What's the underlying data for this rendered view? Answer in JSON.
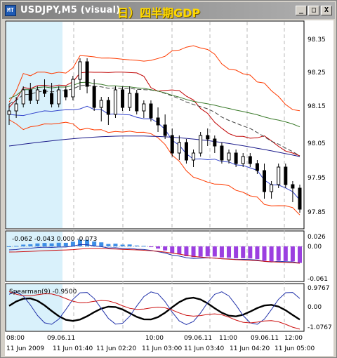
{
  "window": {
    "title": "USDJPY,M5 (visual)",
    "note": "日）四半期GDP",
    "buttons": [
      {
        "name": "minimize-button",
        "glyph": "_"
      },
      {
        "name": "maximize-button",
        "glyph": "□"
      },
      {
        "name": "close-button",
        "glyph": "X"
      }
    ]
  },
  "price_axis": [
    "98.35",
    "98.25",
    "98.15",
    "98.05",
    "97.95",
    "97.85"
  ],
  "macd": {
    "readout": "-0.062 -0.043 0.000 -0.073",
    "axis": [
      "0.026",
      "0.00",
      "-0.061"
    ]
  },
  "spearman": {
    "label": "Spearman(9) -0.9500",
    "axis": [
      "0.9767",
      "0.00",
      "-1.0767"
    ]
  },
  "time_top": [
    "08:00",
    "09.06.11",
    "10:00",
    "09.06.11",
    "11:00",
    "09.06.11",
    "12:00"
  ],
  "time_bottom": [
    "11 Jun 2009",
    "11 Jun 01:40",
    "11 Jun 02:20",
    "11 Jun 03:00",
    "11 Jun 03:40",
    "11 Jun 04:20",
    "11 Jun 05:00"
  ],
  "colors": {
    "bull_candle": "#ffffff",
    "bear_candle": "#000000",
    "upper_band": "#ff3b00",
    "ma_dark": "#404040",
    "ma_green": "#3a7a2a",
    "ma_navy": "#1a1a8a",
    "ma_red": "#c00000",
    "histogram_pos": "#3d8ee6",
    "histogram_neg": "#9b3fe0",
    "shade": "#d9f1fb"
  },
  "chart_data": {
    "type": "candlestick",
    "ylim": [
      97.82,
      98.4
    ],
    "candles": [
      {
        "o": 98.14,
        "h": 98.17,
        "l": 98.11,
        "c": 98.15
      },
      {
        "o": 98.15,
        "h": 98.19,
        "l": 98.13,
        "c": 98.17
      },
      {
        "o": 98.17,
        "h": 98.22,
        "l": 98.16,
        "c": 98.21
      },
      {
        "o": 98.21,
        "h": 98.23,
        "l": 98.17,
        "c": 98.18
      },
      {
        "o": 98.18,
        "h": 98.22,
        "l": 98.17,
        "c": 98.21
      },
      {
        "o": 98.21,
        "h": 98.24,
        "l": 98.19,
        "c": 98.2
      },
      {
        "o": 98.2,
        "h": 98.23,
        "l": 98.16,
        "c": 98.17
      },
      {
        "o": 98.17,
        "h": 98.22,
        "l": 98.16,
        "c": 98.21
      },
      {
        "o": 98.21,
        "h": 98.22,
        "l": 98.18,
        "c": 98.19
      },
      {
        "o": 98.19,
        "h": 98.25,
        "l": 98.18,
        "c": 98.24
      },
      {
        "o": 98.24,
        "h": 98.3,
        "l": 98.21,
        "c": 98.29
      },
      {
        "o": 98.29,
        "h": 98.3,
        "l": 98.2,
        "c": 98.22
      },
      {
        "o": 98.22,
        "h": 98.24,
        "l": 98.15,
        "c": 98.16
      },
      {
        "o": 98.16,
        "h": 98.19,
        "l": 98.12,
        "c": 98.18
      },
      {
        "o": 98.18,
        "h": 98.19,
        "l": 98.11,
        "c": 98.14
      },
      {
        "o": 98.14,
        "h": 98.22,
        "l": 98.13,
        "c": 98.21
      },
      {
        "o": 98.21,
        "h": 98.22,
        "l": 98.15,
        "c": 98.16
      },
      {
        "o": 98.16,
        "h": 98.22,
        "l": 98.15,
        "c": 98.2
      },
      {
        "o": 98.2,
        "h": 98.21,
        "l": 98.14,
        "c": 98.15
      },
      {
        "o": 98.15,
        "h": 98.18,
        "l": 98.13,
        "c": 98.17
      },
      {
        "o": 98.17,
        "h": 98.18,
        "l": 98.12,
        "c": 98.13
      },
      {
        "o": 98.13,
        "h": 98.16,
        "l": 98.09,
        "c": 98.11
      },
      {
        "o": 98.11,
        "h": 98.14,
        "l": 98.07,
        "c": 98.08
      },
      {
        "o": 98.08,
        "h": 98.1,
        "l": 98.02,
        "c": 98.03
      },
      {
        "o": 98.03,
        "h": 98.08,
        "l": 98.01,
        "c": 98.06
      },
      {
        "o": 98.06,
        "h": 98.07,
        "l": 98.0,
        "c": 98.01
      },
      {
        "o": 98.01,
        "h": 98.04,
        "l": 97.99,
        "c": 98.03
      },
      {
        "o": 98.03,
        "h": 98.09,
        "l": 98.02,
        "c": 98.08
      },
      {
        "o": 98.08,
        "h": 98.1,
        "l": 98.05,
        "c": 98.07
      },
      {
        "o": 98.07,
        "h": 98.08,
        "l": 98.03,
        "c": 98.05
      },
      {
        "o": 98.05,
        "h": 98.06,
        "l": 98.0,
        "c": 98.01
      },
      {
        "o": 98.01,
        "h": 98.04,
        "l": 98.0,
        "c": 98.03
      },
      {
        "o": 98.03,
        "h": 98.04,
        "l": 97.99,
        "c": 98.0
      },
      {
        "o": 98.0,
        "h": 98.03,
        "l": 97.99,
        "c": 98.02
      },
      {
        "o": 98.02,
        "h": 98.03,
        "l": 97.99,
        "c": 98.0
      },
      {
        "o": 98.0,
        "h": 98.01,
        "l": 97.97,
        "c": 97.98
      },
      {
        "o": 97.98,
        "h": 98.0,
        "l": 97.9,
        "c": 97.92
      },
      {
        "o": 97.92,
        "h": 97.95,
        "l": 97.9,
        "c": 97.94
      },
      {
        "o": 97.94,
        "h": 98.0,
        "l": 97.93,
        "c": 97.99
      },
      {
        "o": 97.99,
        "h": 98.0,
        "l": 97.93,
        "c": 97.94
      },
      {
        "o": 97.94,
        "h": 97.95,
        "l": 97.89,
        "c": 97.93
      },
      {
        "o": 97.93,
        "h": 97.94,
        "l": 97.86,
        "c": 97.87
      }
    ]
  }
}
